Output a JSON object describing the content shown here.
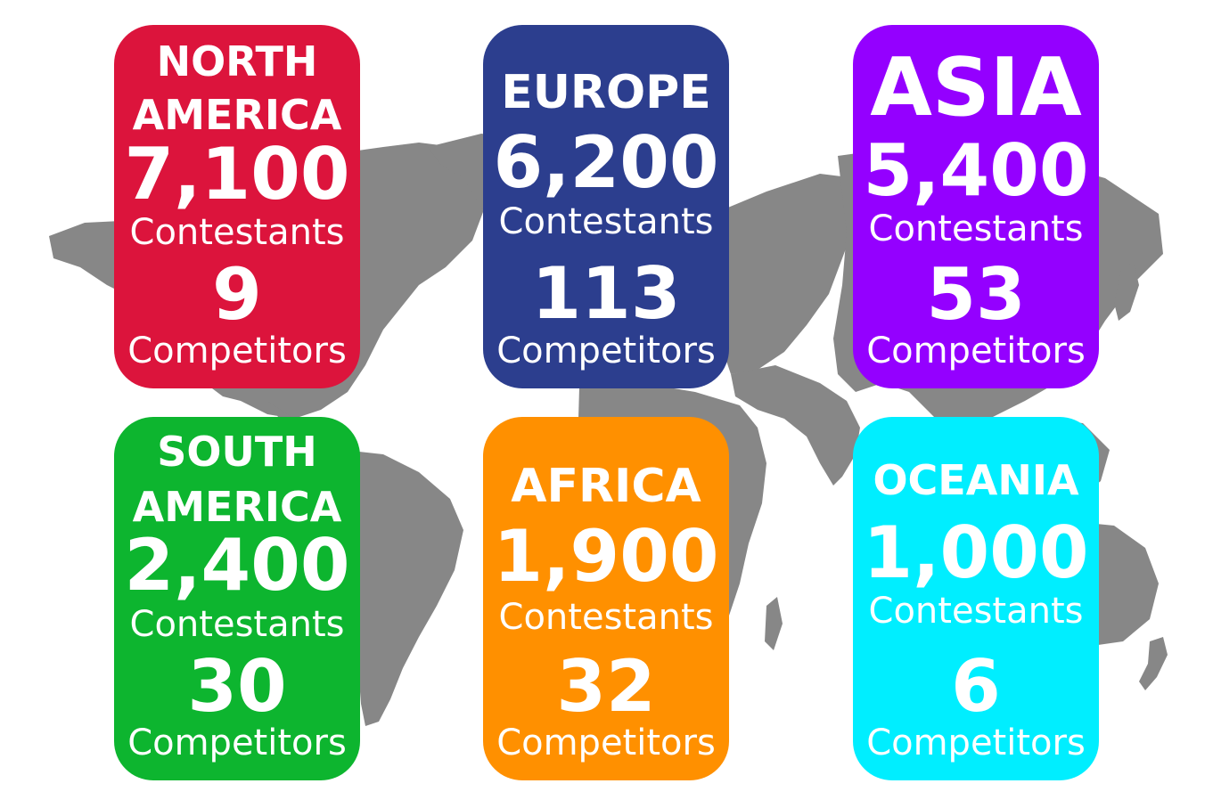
{
  "regions": [
    {
      "name_line1": "NORTH",
      "name_line2": "AMERICA",
      "contestants": "7,100",
      "contestants_label": "Contestants",
      "competitors": "9",
      "competitors_label": "Competitors",
      "color": "#dc143c"
    },
    {
      "name_line1": "EUROPE",
      "contestants": "6,200",
      "contestants_label": "Contestants",
      "competitors": "113",
      "competitors_label": "Competitors",
      "color": "#2c3e8e"
    },
    {
      "name_line1": "ASIA",
      "contestants": "5,400",
      "contestants_label": "Contestants",
      "competitors": "53",
      "competitors_label": "Competitors",
      "color": "#9400ff"
    },
    {
      "name_line1": "SOUTH",
      "name_line2": "AMERICA",
      "contestants": "2,400",
      "contestants_label": "Contestants",
      "competitors": "30",
      "competitors_label": "Competitors",
      "color": "#0db52f"
    },
    {
      "name_line1": "AFRICA",
      "contestants": "1,900",
      "contestants_label": "Contestants",
      "competitors": "32",
      "competitors_label": "Competitors",
      "color": "#ff9000"
    },
    {
      "name_line1": "OCEANIA",
      "contestants": "1,000",
      "contestants_label": "Contestants",
      "competitors": "6",
      "competitors_label": "Competitors",
      "color": "#00eeff"
    }
  ],
  "map_color": "#878787"
}
